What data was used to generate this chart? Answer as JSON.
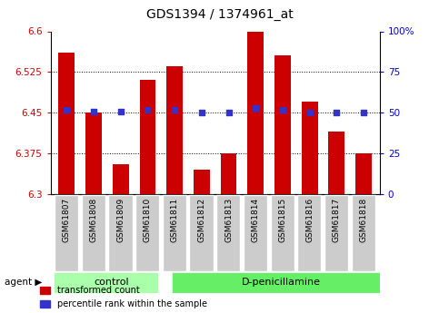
{
  "title": "GDS1394 / 1374961_at",
  "samples": [
    "GSM61807",
    "GSM61808",
    "GSM61809",
    "GSM61810",
    "GSM61811",
    "GSM61812",
    "GSM61813",
    "GSM61814",
    "GSM61815",
    "GSM61816",
    "GSM61817",
    "GSM61818"
  ],
  "transformed_count": [
    6.56,
    6.45,
    6.355,
    6.51,
    6.535,
    6.345,
    6.375,
    6.61,
    6.555,
    6.47,
    6.415,
    6.375
  ],
  "percentile_rank": [
    6.455,
    6.452,
    6.452,
    6.455,
    6.455,
    6.45,
    6.45,
    6.458,
    6.455,
    6.45,
    6.45,
    6.45
  ],
  "ylim": [
    6.3,
    6.6
  ],
  "yticks": [
    6.3,
    6.375,
    6.45,
    6.525,
    6.6
  ],
  "ytick_labels": [
    "6.3",
    "6.375",
    "6.45",
    "6.525",
    "6.6"
  ],
  "right_yticks_pct": [
    0,
    25,
    50,
    75,
    100
  ],
  "right_ytick_labels": [
    "0",
    "25",
    "50",
    "75",
    "100%"
  ],
  "bar_color": "#cc0000",
  "dot_color": "#3333cc",
  "bar_width": 0.6,
  "ctrl_count": 4,
  "treat_count": 8,
  "control_label": "control",
  "treatment_label": "D-penicillamine",
  "agent_label": "agent",
  "legend_red": "transformed count",
  "legend_blue": "percentile rank within the sample",
  "control_color": "#aaffaa",
  "treatment_color": "#66ee66",
  "sample_box_color": "#cccccc",
  "tick_color_left": "#cc0000",
  "tick_color_right": "#0000cc"
}
